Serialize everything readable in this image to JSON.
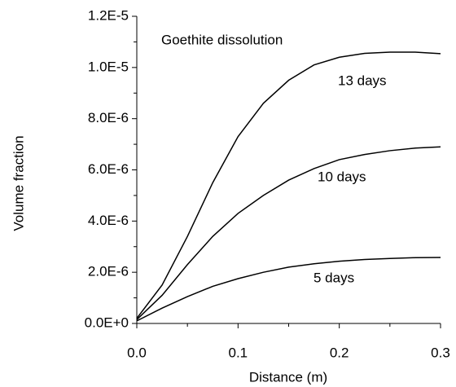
{
  "chart_data": {
    "type": "line",
    "annotation": "Goethite dissolution",
    "x_label": "Distance (m)",
    "y_label": "Volume fraction",
    "x": [
      0,
      0.025,
      0.05,
      0.075,
      0.1,
      0.125,
      0.15,
      0.175,
      0.2,
      0.225,
      0.25,
      0.275,
      0.3
    ],
    "series": [
      {
        "name": "13 days",
        "color": "#000000",
        "values": [
          2e-07,
          1.5e-06,
          3.4e-06,
          5.5e-06,
          7.3e-06,
          8.6e-06,
          9.5e-06,
          1.01e-05,
          1.04e-05,
          1.055e-05,
          1.06e-05,
          1.06e-05,
          1.054e-05
        ]
      },
      {
        "name": "10 days",
        "color": "#000000",
        "values": [
          1.5e-07,
          1.1e-06,
          2.3e-06,
          3.4e-06,
          4.3e-06,
          5e-06,
          5.6e-06,
          6.05e-06,
          6.4e-06,
          6.6e-06,
          6.75e-06,
          6.85e-06,
          6.9e-06
        ]
      },
      {
        "name": "5 days",
        "color": "#000000",
        "values": [
          1e-07,
          6e-07,
          1.05e-06,
          1.45e-06,
          1.75e-06,
          2e-06,
          2.2e-06,
          2.33e-06,
          2.43e-06,
          2.5e-06,
          2.54e-06,
          2.57e-06,
          2.58e-06
        ]
      }
    ],
    "xlim": [
      0,
      0.3
    ],
    "ylim": [
      0,
      1.2e-05
    ],
    "xticks": [
      {
        "value": 0,
        "label": "0.0"
      },
      0.1,
      0.2,
      0.3
    ],
    "xminorticks": [
      0.05,
      0.15,
      0.25
    ],
    "yticks": [
      {
        "value": 0,
        "label": "0.0E+0"
      },
      {
        "value": 2e-06,
        "label": "2.0E-6"
      },
      {
        "value": 4e-06,
        "label": "4.0E-6"
      },
      {
        "value": 6e-06,
        "label": "6.0E-6"
      },
      {
        "value": 8e-06,
        "label": "8.0E-6"
      },
      {
        "value": 1e-05,
        "label": "1.0E-5"
      },
      {
        "value": 1.2e-05,
        "label": "1.2E-5"
      }
    ],
    "yminorticks": [
      1e-06,
      3e-06,
      5e-06,
      7e-06,
      9e-06,
      1.1e-05
    ],
    "grid": false
  }
}
